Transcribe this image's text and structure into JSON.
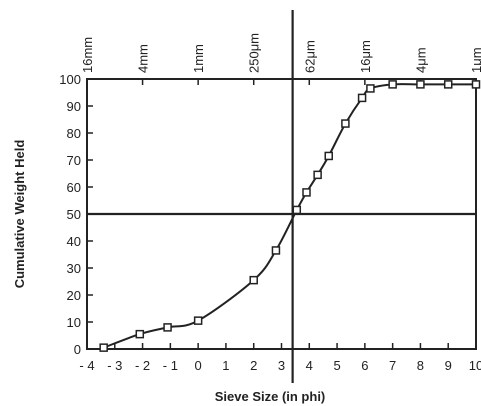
{
  "chart_data": {
    "type": "line",
    "xlabel": "Sieve Size (in phi)",
    "ylabel": "Cumulative Weight Held",
    "xlim": [
      -4,
      10
    ],
    "ylim": [
      0,
      100
    ],
    "x_ticks": [
      -4,
      -3,
      -2,
      -1,
      0,
      1,
      2,
      3,
      4,
      5,
      6,
      7,
      8,
      9,
      10
    ],
    "x_tick_labels": [
      "- 4",
      "- 3",
      "- 2",
      "- 1",
      "0",
      "1",
      "2",
      "3",
      "4",
      "5",
      "6",
      "7",
      "8",
      "9",
      "10"
    ],
    "y_ticks": [
      0,
      10,
      20,
      30,
      40,
      50,
      60,
      70,
      80,
      90,
      100
    ],
    "y_tick_labels": [
      "0",
      "10",
      "20",
      "30",
      "40",
      "50",
      "60",
      "70",
      "80",
      "90",
      "100"
    ],
    "top_axis": {
      "ticks": [
        -4,
        -2,
        0,
        2,
        4,
        6,
        8,
        10
      ],
      "labels": [
        "16mm",
        "4mm",
        "1mm",
        "250μm",
        "62μm",
        "16μm",
        "4μm",
        "1μm"
      ]
    },
    "reference_lines": {
      "x": 3.4,
      "y": 50
    },
    "series": [
      {
        "marker": "square",
        "x": [
          -3.4,
          -2.1,
          -1.1,
          0.0,
          2.0,
          2.8,
          3.55,
          3.9,
          4.3,
          4.7,
          5.3,
          5.9,
          6.2,
          7.0,
          8.0,
          9.0,
          10.0
        ],
        "y": [
          0.5,
          5.5,
          8,
          10.5,
          25.5,
          36.5,
          51.5,
          58,
          64.5,
          71.5,
          83.5,
          93,
          96.5,
          98,
          98,
          98,
          98
        ]
      }
    ],
    "grid": false
  },
  "colors": {
    "ink": "#222222",
    "background": "#ffffff"
  }
}
